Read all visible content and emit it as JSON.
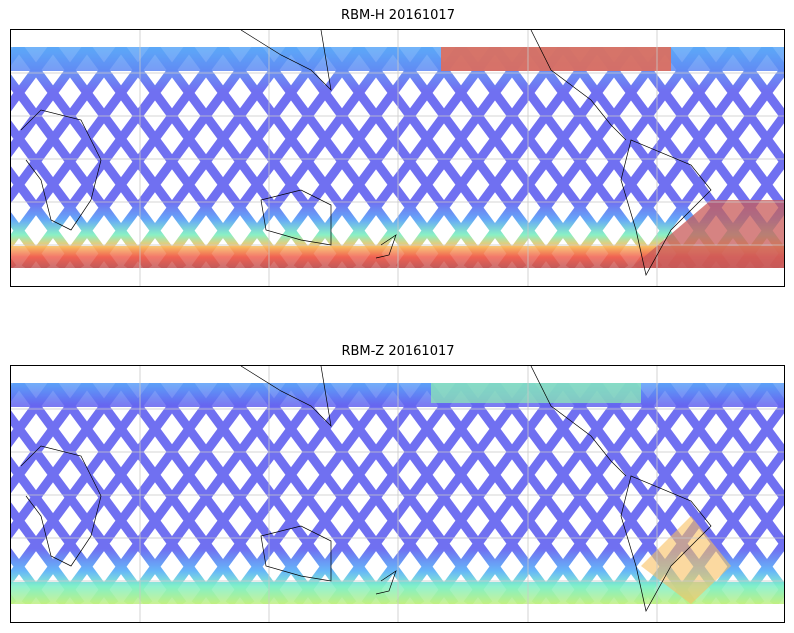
{
  "panels": [
    {
      "title": "RBM-H 20161017"
    },
    {
      "title": "RBM-Z 20161017"
    }
  ],
  "colors": {
    "track_low": "#6060f0",
    "track_mid": "#5ec8f8",
    "track_high": "#c05858"
  },
  "chart_data": [
    {
      "type": "heatmap",
      "title": "RBM-H 20161017",
      "projection": "cylindrical",
      "grid": true,
      "colormap": "jet"
    },
    {
      "type": "heatmap",
      "title": "RBM-Z 20161017",
      "projection": "cylindrical",
      "grid": true,
      "colormap": "jet"
    }
  ]
}
